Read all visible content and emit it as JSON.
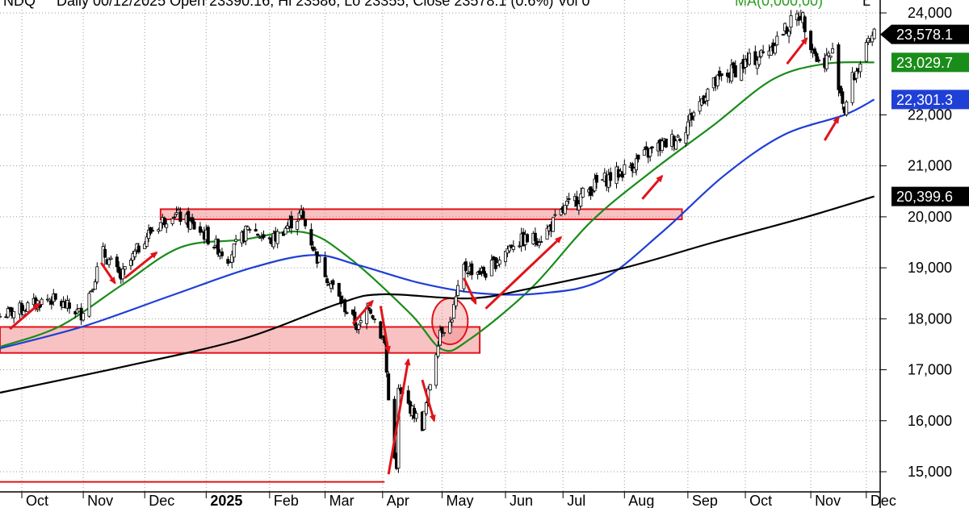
{
  "header": {
    "prefix": "NDQ",
    "text": "Daily 00/12/2025 Open 23390.16, Hi 23586, Lo 23355, Close 23578.1 (0.6%) Vol 0",
    "ma_text": "MA(0,000,00)",
    "suffix": "L"
  },
  "badges": [
    {
      "value": "23,578.1",
      "color": "#000000",
      "shape": "arrow",
      "y": 23578.1
    },
    {
      "value": "23,029.7",
      "color": "#1a8c1a",
      "shape": "box",
      "y": 23029.7
    },
    {
      "value": "22,301.3",
      "color": "#1f3fd6",
      "shape": "box",
      "y": 22301.3
    },
    {
      "value": "20,399.6",
      "color": "#000000",
      "shape": "box",
      "y": 20399.6
    }
  ],
  "chart_data": {
    "type": "candlestick",
    "y_ticks": [
      {
        "value": 15000,
        "label": "15,000"
      },
      {
        "value": 16000,
        "label": "16,000"
      },
      {
        "value": 17000,
        "label": "17,000"
      },
      {
        "value": 18000,
        "label": "18,000"
      },
      {
        "value": 19000,
        "label": "19,000"
      },
      {
        "value": 20000,
        "label": "20,000"
      },
      {
        "value": 21000,
        "label": "21,000"
      },
      {
        "value": 22000,
        "label": "22,000"
      },
      {
        "value": 24000,
        "label": "24,000"
      }
    ],
    "ylim": [
      14600,
      24200
    ],
    "grid": true,
    "x_months": [
      {
        "label": "Oct",
        "date": "2024-10-01"
      },
      {
        "label": "Nov",
        "date": "2024-11-01"
      },
      {
        "label": "Dec",
        "date": "2024-12-02"
      },
      {
        "label": "2025",
        "date": "2025-01-02",
        "bold": true
      },
      {
        "label": "Feb",
        "date": "2025-02-03"
      },
      {
        "label": "Mar",
        "date": "2025-03-03"
      },
      {
        "label": "Apr",
        "date": "2025-04-01"
      },
      {
        "label": "May",
        "date": "2025-05-01"
      },
      {
        "label": "Jun",
        "date": "2025-06-02"
      },
      {
        "label": "Jul",
        "date": "2025-07-01"
      },
      {
        "label": "Aug",
        "date": "2025-08-01"
      },
      {
        "label": "Sep",
        "date": "2025-09-02"
      },
      {
        "label": "Oct",
        "date": "2025-10-01"
      },
      {
        "label": "Nov",
        "date": "2025-11-03"
      },
      {
        "label": "Dec",
        "date": "2025-12-01"
      }
    ],
    "xlim": [
      "2024-09-20",
      "2025-12-08"
    ],
    "close_series": [
      [
        "2024-09-20",
        18050
      ],
      [
        "2024-10-01",
        18200
      ],
      [
        "2024-10-15",
        18400
      ],
      [
        "2024-10-31",
        18100
      ],
      [
        "2024-11-05",
        18600
      ],
      [
        "2024-11-11",
        19300
      ],
      [
        "2024-11-20",
        18800
      ],
      [
        "2024-12-02",
        19600
      ],
      [
        "2024-12-16",
        20100
      ],
      [
        "2024-12-31",
        19700
      ],
      [
        "2025-01-13",
        19200
      ],
      [
        "2025-01-24",
        19800
      ],
      [
        "2025-02-03",
        19500
      ],
      [
        "2025-02-14",
        19900
      ],
      [
        "2025-02-19",
        20050
      ],
      [
        "2025-02-27",
        19200
      ],
      [
        "2025-03-10",
        18400
      ],
      [
        "2025-03-20",
        17800
      ],
      [
        "2025-03-25",
        18300
      ],
      [
        "2025-04-02",
        17500
      ],
      [
        "2025-04-04",
        16400
      ],
      [
        "2025-04-08",
        15000
      ],
      [
        "2025-04-09",
        16600
      ],
      [
        "2025-04-21",
        15900
      ],
      [
        "2025-04-30",
        17800
      ],
      [
        "2025-05-05",
        17900
      ],
      [
        "2025-05-12",
        19000
      ],
      [
        "2025-05-23",
        18900
      ],
      [
        "2025-06-06",
        19500
      ],
      [
        "2025-06-20",
        19600
      ],
      [
        "2025-07-03",
        20200
      ],
      [
        "2025-07-18",
        20650
      ],
      [
        "2025-07-31",
        20900
      ],
      [
        "2025-08-15",
        21300
      ],
      [
        "2025-08-29",
        21600
      ],
      [
        "2025-09-12",
        22500
      ],
      [
        "2025-09-26",
        22900
      ],
      [
        "2025-10-10",
        23200
      ],
      [
        "2025-10-29",
        24000
      ],
      [
        "2025-11-07",
        23000
      ],
      [
        "2025-11-14",
        23200
      ],
      [
        "2025-11-20",
        22100
      ],
      [
        "2025-11-24",
        22700
      ],
      [
        "2025-12-05",
        23578
      ]
    ],
    "moving_averages": [
      {
        "color": "#1a8c1a",
        "points": [
          [
            "2024-09-20",
            17450
          ],
          [
            "2024-10-20",
            17850
          ],
          [
            "2024-11-20",
            18650
          ],
          [
            "2024-12-20",
            19400
          ],
          [
            "2025-01-20",
            19550
          ],
          [
            "2025-02-20",
            19700
          ],
          [
            "2025-03-15",
            19200
          ],
          [
            "2025-04-15",
            18100
          ],
          [
            "2025-05-01",
            17400
          ],
          [
            "2025-05-15",
            17600
          ],
          [
            "2025-06-15",
            18600
          ],
          [
            "2025-07-15",
            19900
          ],
          [
            "2025-08-15",
            20900
          ],
          [
            "2025-09-15",
            21800
          ],
          [
            "2025-10-15",
            22700
          ],
          [
            "2025-11-10",
            23000
          ],
          [
            "2025-12-05",
            23030
          ]
        ]
      },
      {
        "color": "#1f3fd6",
        "points": [
          [
            "2024-09-20",
            17420
          ],
          [
            "2024-11-01",
            17850
          ],
          [
            "2024-12-15",
            18450
          ],
          [
            "2025-01-25",
            19000
          ],
          [
            "2025-02-25",
            19250
          ],
          [
            "2025-03-20",
            19050
          ],
          [
            "2025-04-20",
            18700
          ],
          [
            "2025-05-20",
            18500
          ],
          [
            "2025-06-20",
            18500
          ],
          [
            "2025-07-20",
            18750
          ],
          [
            "2025-08-20",
            19700
          ],
          [
            "2025-09-20",
            20800
          ],
          [
            "2025-10-20",
            21600
          ],
          [
            "2025-11-20",
            22000
          ],
          [
            "2025-12-05",
            22301
          ]
        ]
      },
      {
        "color": "#000000",
        "points": [
          [
            "2024-09-20",
            16550
          ],
          [
            "2024-11-20",
            17050
          ],
          [
            "2025-01-20",
            17600
          ],
          [
            "2025-03-10",
            18300
          ],
          [
            "2025-04-01",
            18480
          ],
          [
            "2025-05-15",
            18400
          ],
          [
            "2025-06-15",
            18600
          ],
          [
            "2025-08-01",
            19000
          ],
          [
            "2025-09-15",
            19500
          ],
          [
            "2025-11-01",
            20000
          ],
          [
            "2025-12-05",
            20400
          ]
        ]
      }
    ],
    "annotations": {
      "rectangles": [
        {
          "x0": "2024-12-10",
          "x1": "2025-08-30",
          "y0": 19950,
          "y1": 20150
        },
        {
          "x0": "2024-09-20",
          "x1": "2025-05-20",
          "y0": 17330,
          "y1": 17840
        }
      ],
      "ellipse": {
        "x": "2025-05-05",
        "y": 17950,
        "rx_days": 9,
        "ry": 450
      },
      "hline": {
        "x0": "2024-09-20",
        "x1": "2025-04-02",
        "y": 14800
      },
      "arrows": [
        {
          "from": [
            "2024-09-25",
            17800
          ],
          "to": [
            "2024-10-10",
            18300
          ]
        },
        {
          "from": [
            "2024-11-10",
            19100
          ],
          "to": [
            "2024-11-17",
            18700
          ]
        },
        {
          "from": [
            "2024-11-22",
            18800
          ],
          "to": [
            "2024-12-08",
            19300
          ]
        },
        {
          "from": [
            "2025-03-17",
            17900
          ],
          "to": [
            "2025-03-27",
            18350
          ]
        },
        {
          "from": [
            "2025-03-31",
            18250
          ],
          "to": [
            "2025-04-04",
            17350
          ]
        },
        {
          "from": [
            "2025-04-04",
            14950
          ],
          "to": [
            "2025-04-14",
            17200
          ]
        },
        {
          "from": [
            "2025-04-21",
            16800
          ],
          "to": [
            "2025-04-27",
            16000
          ]
        },
        {
          "from": [
            "2025-05-12",
            18800
          ],
          "to": [
            "2025-05-18",
            18300
          ]
        },
        {
          "from": [
            "2025-05-23",
            18200
          ],
          "to": [
            "2025-06-30",
            19600
          ]
        },
        {
          "from": [
            "2025-08-10",
            20350
          ],
          "to": [
            "2025-08-20",
            20800
          ]
        },
        {
          "from": [
            "2025-10-22",
            23000
          ],
          "to": [
            "2025-11-01",
            23500
          ]
        },
        {
          "from": [
            "2025-11-10",
            21500
          ],
          "to": [
            "2025-11-17",
            21950
          ]
        }
      ]
    }
  }
}
